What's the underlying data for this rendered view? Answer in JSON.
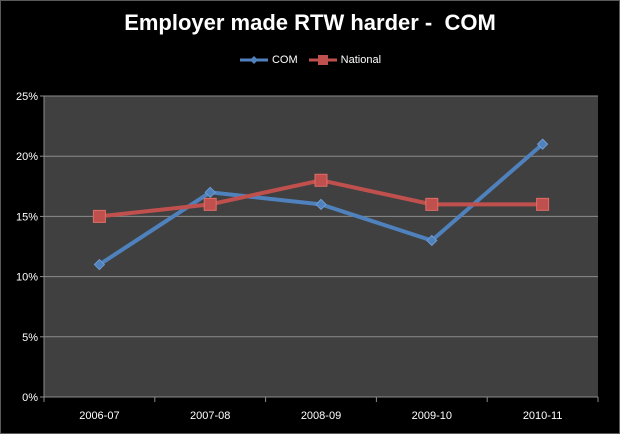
{
  "chart_data": {
    "type": "line",
    "title": "Employer made RTW harder -  COM",
    "categories": [
      "2006-07",
      "2007-08",
      "2008-09",
      "2009-10",
      "2010-11"
    ],
    "ylim": [
      0,
      25
    ],
    "yticks": [
      "0%",
      "5%",
      "10%",
      "15%",
      "20%",
      "25%"
    ],
    "ytick_values": [
      0,
      5,
      10,
      15,
      20,
      25
    ],
    "grid": true,
    "legend_position": "top",
    "series": [
      {
        "name": "COM",
        "values": [
          11,
          17,
          16,
          13,
          21
        ],
        "color": "#4f81bd",
        "marker": "diamond"
      },
      {
        "name": "National",
        "values": [
          15,
          16,
          18,
          16,
          16
        ],
        "color": "#c0504d",
        "marker": "square"
      }
    ],
    "plot_background": "#404040",
    "page_background": "#000000"
  }
}
